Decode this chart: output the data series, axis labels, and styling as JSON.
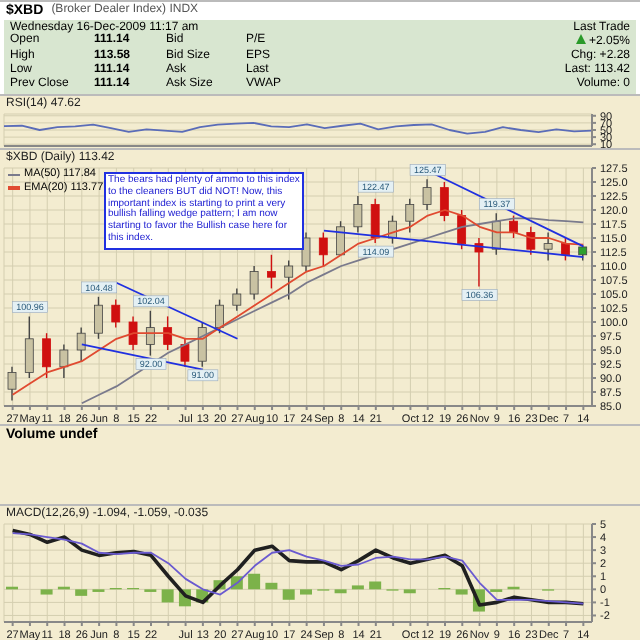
{
  "chart_data": [
    {
      "type": "other",
      "title": "$XBD",
      "subtitle": "(Broker Dealer Index) INDX",
      "annotations": [
        "Wednesday 16-Dec-2009 11:17 am",
        "Last Trade",
        "Open",
        "111.14",
        "Bid",
        "P/E",
        "+2.05%",
        "High",
        "113.58",
        "Bid Size",
        "EPS",
        "Chg: +2.28",
        "Low",
        "111.14",
        "Ask",
        "Last",
        "Last: 113.42",
        "Prev Close",
        "111.14",
        "Ask Size",
        "VWAP",
        "Volume: 0"
      ]
    },
    {
      "type": "line",
      "title": "RSI(14) 47.62",
      "categories": [
        null,
        null,
        null,
        null,
        null,
        null,
        null,
        null,
        null,
        null,
        null,
        null,
        null,
        null,
        null,
        null,
        null,
        null,
        null,
        null,
        null,
        null,
        null,
        null,
        null,
        null,
        null,
        null,
        null,
        null,
        null,
        null,
        null,
        null
      ],
      "ylim": [
        5,
        95
      ],
      "yticks": [
        10,
        30,
        50,
        70,
        90
      ],
      "grid": true,
      "tick_labels": "y",
      "series": [
        {
          "color": "#5a6cb8",
          "values": [
            61,
            62,
            50,
            58,
            60,
            65,
            55,
            45,
            52,
            48,
            45,
            58,
            65,
            68,
            70,
            60,
            58,
            66,
            55,
            62,
            68,
            52,
            60,
            64,
            66,
            50,
            40,
            45,
            58,
            50,
            44,
            52,
            46,
            48
          ]
        }
      ]
    },
    {
      "type": "candlestick",
      "title": "$XBD (Daily) 113.42",
      "legend": "top left",
      "grid": true,
      "categories": [
        "27",
        "May",
        "11",
        "18",
        "26",
        "Jun",
        "8",
        "15",
        "22",
        null,
        "Jul",
        "13",
        "20",
        "27",
        "Aug",
        "10",
        "17",
        "24",
        "Sep",
        "8",
        "14",
        "21",
        null,
        "Oct",
        "12",
        "19",
        "26",
        "Nov",
        "9",
        "16",
        "23",
        "Dec",
        "7",
        "14"
      ],
      "ohlc": [
        [
          88,
          92,
          86,
          91
        ],
        [
          91,
          101,
          90,
          97
        ],
        [
          97,
          98,
          90,
          92
        ],
        [
          92,
          96,
          90,
          95
        ],
        [
          95,
          99,
          93,
          98
        ],
        [
          98,
          104.5,
          97,
          103
        ],
        [
          103,
          104,
          99,
          100
        ],
        [
          100,
          101,
          95,
          96
        ],
        [
          96,
          102,
          94,
          99
        ],
        [
          99,
          101,
          95,
          96
        ],
        [
          96,
          97,
          92,
          93
        ],
        [
          93,
          100,
          92,
          99
        ],
        [
          99,
          104,
          98,
          103
        ],
        [
          103,
          106,
          102,
          105
        ],
        [
          105,
          110,
          104,
          109
        ],
        [
          109,
          112,
          106,
          108
        ],
        [
          108,
          111,
          104,
          110
        ],
        [
          110,
          116,
          109,
          115
        ],
        [
          115,
          116,
          110,
          112
        ],
        [
          112,
          118,
          112,
          117
        ],
        [
          117,
          122.5,
          116,
          121
        ],
        [
          121,
          122,
          114.09,
          115
        ],
        [
          115,
          119,
          114,
          118
        ],
        [
          118,
          122,
          116,
          121
        ],
        [
          121,
          125.5,
          120,
          124
        ],
        [
          124,
          125,
          118,
          119
        ],
        [
          119,
          120,
          113,
          114
        ],
        [
          114,
          115,
          106.36,
          112.5
        ],
        [
          113,
          119.4,
          112,
          118
        ],
        [
          118,
          119,
          115,
          116
        ],
        [
          116,
          117,
          112,
          113
        ],
        [
          113,
          116,
          111,
          114
        ],
        [
          114,
          115,
          111,
          112
        ],
        [
          112,
          113.6,
          111,
          113.4
        ]
      ],
      "colors": [
        "#c9c2a2",
        "#c9c2a2",
        "#d01010",
        "#c9c2a2",
        "#c9c2a2",
        "#c9c2a2",
        "#d01010",
        "#d01010",
        "#c9c2a2",
        "#d01010",
        "#d01010",
        "#c9c2a2",
        "#c9c2a2",
        "#c9c2a2",
        "#c9c2a2",
        "#d01010",
        "#c9c2a2",
        "#c9c2a2",
        "#d01010",
        "#c9c2a2",
        "#c9c2a2",
        "#d01010",
        "#c9c2a2",
        "#c9c2a2",
        "#c9c2a2",
        "#d01010",
        "#d01010",
        "#d01010",
        "#c9c2a2",
        "#d01010",
        "#d01010",
        "#c9c2a2",
        "#d01010",
        "#2ea02e"
      ],
      "ylim": [
        85,
        127.5
      ],
      "yticks": [
        {
          "value": 85,
          "label": "85.0"
        },
        87.5,
        {
          "value": 90,
          "label": "90.0"
        },
        92.5,
        {
          "value": 95,
          "label": "95.0"
        },
        97.5,
        {
          "value": 100,
          "label": "100.0"
        },
        102.5,
        {
          "value": 105,
          "label": "105.0"
        },
        107.5,
        {
          "value": 110,
          "label": "110.0"
        },
        112.5,
        {
          "value": 115,
          "label": "115.0"
        },
        117.5,
        {
          "value": 120,
          "label": "120.0"
        },
        122.5,
        {
          "value": 125,
          "label": "125.0"
        },
        127.5
      ],
      "series": [
        {
          "type": "line",
          "name": "MA(50) 117.84",
          "color": "#7a7a8c",
          "values": [
            null,
            null,
            null,
            null,
            85.5,
            87,
            88.5,
            90.5,
            92.5,
            94.5,
            96,
            97.5,
            99,
            100.5,
            102,
            103.5,
            105,
            107,
            108.5,
            110,
            111,
            112,
            113,
            114,
            115,
            116,
            117,
            117.5,
            118,
            118.5,
            118.5,
            118.2,
            118,
            117.8
          ]
        },
        {
          "type": "line",
          "name": "EMA(20) 113.77",
          "color": "#e04a30",
          "values": [
            87,
            89,
            91,
            92,
            93,
            95,
            97,
            98,
            98,
            98,
            97,
            97,
            99,
            101,
            103,
            105,
            107,
            109,
            110,
            112,
            114,
            115,
            116,
            117,
            119,
            120,
            119,
            117,
            116,
            116,
            115,
            115,
            114,
            113.8
          ]
        },
        {
          "type": "line",
          "color": "#2030e0",
          "values": [
            null,
            null,
            null,
            null,
            96,
            null,
            null,
            null,
            null,
            null,
            null,
            91.5,
            null,
            null,
            null,
            null,
            null,
            null,
            null,
            null,
            null,
            null,
            null,
            null,
            null,
            null,
            null,
            null,
            null,
            null,
            null,
            null,
            null,
            null
          ]
        },
        {
          "type": "line",
          "color": "#2030e0",
          "values": [
            null,
            null,
            null,
            null,
            null,
            null,
            107,
            null,
            null,
            null,
            null,
            null,
            null,
            97,
            null,
            null,
            null,
            null,
            null,
            null,
            null,
            null,
            null,
            null,
            null,
            null,
            null,
            null,
            null,
            null,
            null,
            null,
            null,
            null
          ]
        },
        {
          "type": "line",
          "color": "#2030e0",
          "values": [
            null,
            null,
            null,
            null,
            null,
            null,
            null,
            null,
            null,
            null,
            null,
            null,
            null,
            null,
            null,
            null,
            null,
            null,
            null,
            null,
            null,
            null,
            null,
            null,
            127,
            null,
            null,
            null,
            null,
            null,
            null,
            null,
            null,
            113.5
          ]
        },
        {
          "type": "line",
          "color": "#2030e0",
          "values": [
            null,
            null,
            null,
            null,
            null,
            null,
            null,
            null,
            null,
            null,
            null,
            null,
            null,
            null,
            null,
            null,
            null,
            null,
            116.3,
            null,
            null,
            null,
            null,
            null,
            null,
            null,
            null,
            null,
            null,
            null,
            null,
            null,
            null,
            111.6
          ]
        }
      ],
      "annotations": [
        "The bears had plenty of ammo to this index to the cleaners BUT did NOT! Now, this important index is starting to print a very bullish falling wedge pattern; I am now starting to favor the Bullish case here for this index.",
        {
          "text": "100.96",
          "x": "May",
          "y": 100.96
        },
        {
          "text": "104.48",
          "x": "Jun",
          "y": 104.48
        },
        {
          "text": "102.04",
          "x": "22",
          "y": 102
        },
        {
          "text": "92.00",
          "x": "22",
          "y": 94
        },
        {
          "text": "91.00",
          "x": "13",
          "y": 92
        },
        {
          "text": "122.47",
          "x": "21",
          "y": 122.47
        },
        {
          "text": "125.47",
          "x": "12",
          "y": 125.47
        },
        {
          "text": "114.09",
          "x": "21",
          "y": 114.09
        },
        {
          "text": "106.36",
          "x": "Nov",
          "y": 106.36
        },
        {
          "text": "119.37",
          "x": "9",
          "y": 119.37
        }
      ]
    },
    {
      "type": "other",
      "title": "Volume undef"
    },
    {
      "type": "line",
      "title": "MACD(12,26,9) -1.094, -1.059, -0.035",
      "grid": true,
      "categories": [
        "27",
        "May",
        "11",
        "18",
        "26",
        "Jun",
        "8",
        "15",
        "22",
        null,
        "Jul",
        "13",
        "20",
        "27",
        "Aug",
        "10",
        "17",
        "24",
        "Sep",
        "8",
        "14",
        "21",
        null,
        "Oct",
        "12",
        "19",
        "26",
        "Nov",
        "9",
        "16",
        "23",
        "Dec",
        "7",
        "14"
      ],
      "ylim": [
        -2.5,
        5
      ],
      "yticks": [
        -2,
        -1,
        0,
        1,
        2,
        3,
        4,
        5
      ],
      "series": [
        {
          "type": "bar",
          "color": "#7cb24a",
          "values": [
            0.2,
            0,
            -0.4,
            0.2,
            -0.5,
            -0.2,
            0.1,
            0.1,
            -0.2,
            -1,
            -1.3,
            -1,
            0.7,
            1,
            1.2,
            0.5,
            -0.8,
            -0.4,
            -0.1,
            -0.3,
            0.3,
            0.6,
            -0.1,
            -0.3,
            0,
            0.1,
            -0.4,
            -1.7,
            -0.2,
            0.2,
            0,
            -0.1,
            0,
            0
          ]
        },
        {
          "type": "line",
          "color": "#202020",
          "values": [
            4.5,
            4.2,
            3.6,
            4,
            3,
            2.6,
            2.8,
            2.9,
            2.6,
            1,
            -0.5,
            -1,
            0.3,
            1.5,
            3,
            3.3,
            2.2,
            2.1,
            2.1,
            1.5,
            2.2,
            3,
            2.4,
            2,
            2.3,
            2.6,
            1.8,
            -1.2,
            -1,
            -0.6,
            -0.8,
            -1,
            -1,
            -1.1
          ]
        },
        {
          "type": "line",
          "color": "#6a5ad0",
          "values": [
            4.3,
            4.2,
            4,
            3.8,
            3.5,
            2.8,
            2.7,
            2.8,
            2.8,
            2,
            0.8,
            0,
            -0.4,
            0.5,
            1.8,
            2.8,
            3,
            2.5,
            2.2,
            1.8,
            1.9,
            2.4,
            2.5,
            2.3,
            2.3,
            2.5,
            2.2,
            0.5,
            -0.8,
            -0.8,
            -0.8,
            -0.9,
            -1,
            -1.1
          ]
        }
      ]
    }
  ]
}
